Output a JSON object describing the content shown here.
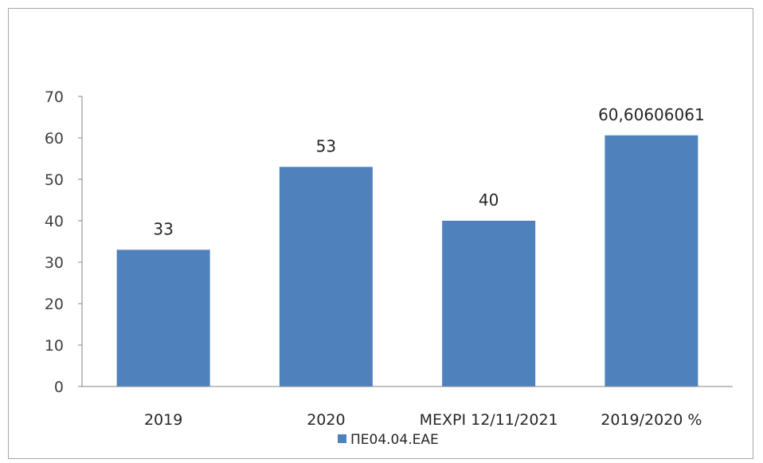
{
  "chart_data": {
    "type": "bar",
    "categories": [
      "2019",
      "2020",
      "ΜΕΧΡΙ 12/11/2021",
      "2019/2020 %"
    ],
    "series": [
      {
        "name": "ΠΕ04.04.ΕΑΕ",
        "values": [
          33,
          53,
          40,
          60.60606061
        ],
        "data_labels": [
          "33",
          "53",
          "40",
          "60,60606061"
        ],
        "color": "#4f81bd"
      }
    ],
    "ylim": [
      0,
      70
    ],
    "yticks": [
      0,
      10,
      20,
      30,
      40,
      50,
      60,
      70
    ],
    "grid": false,
    "legend_position": "bottom"
  }
}
